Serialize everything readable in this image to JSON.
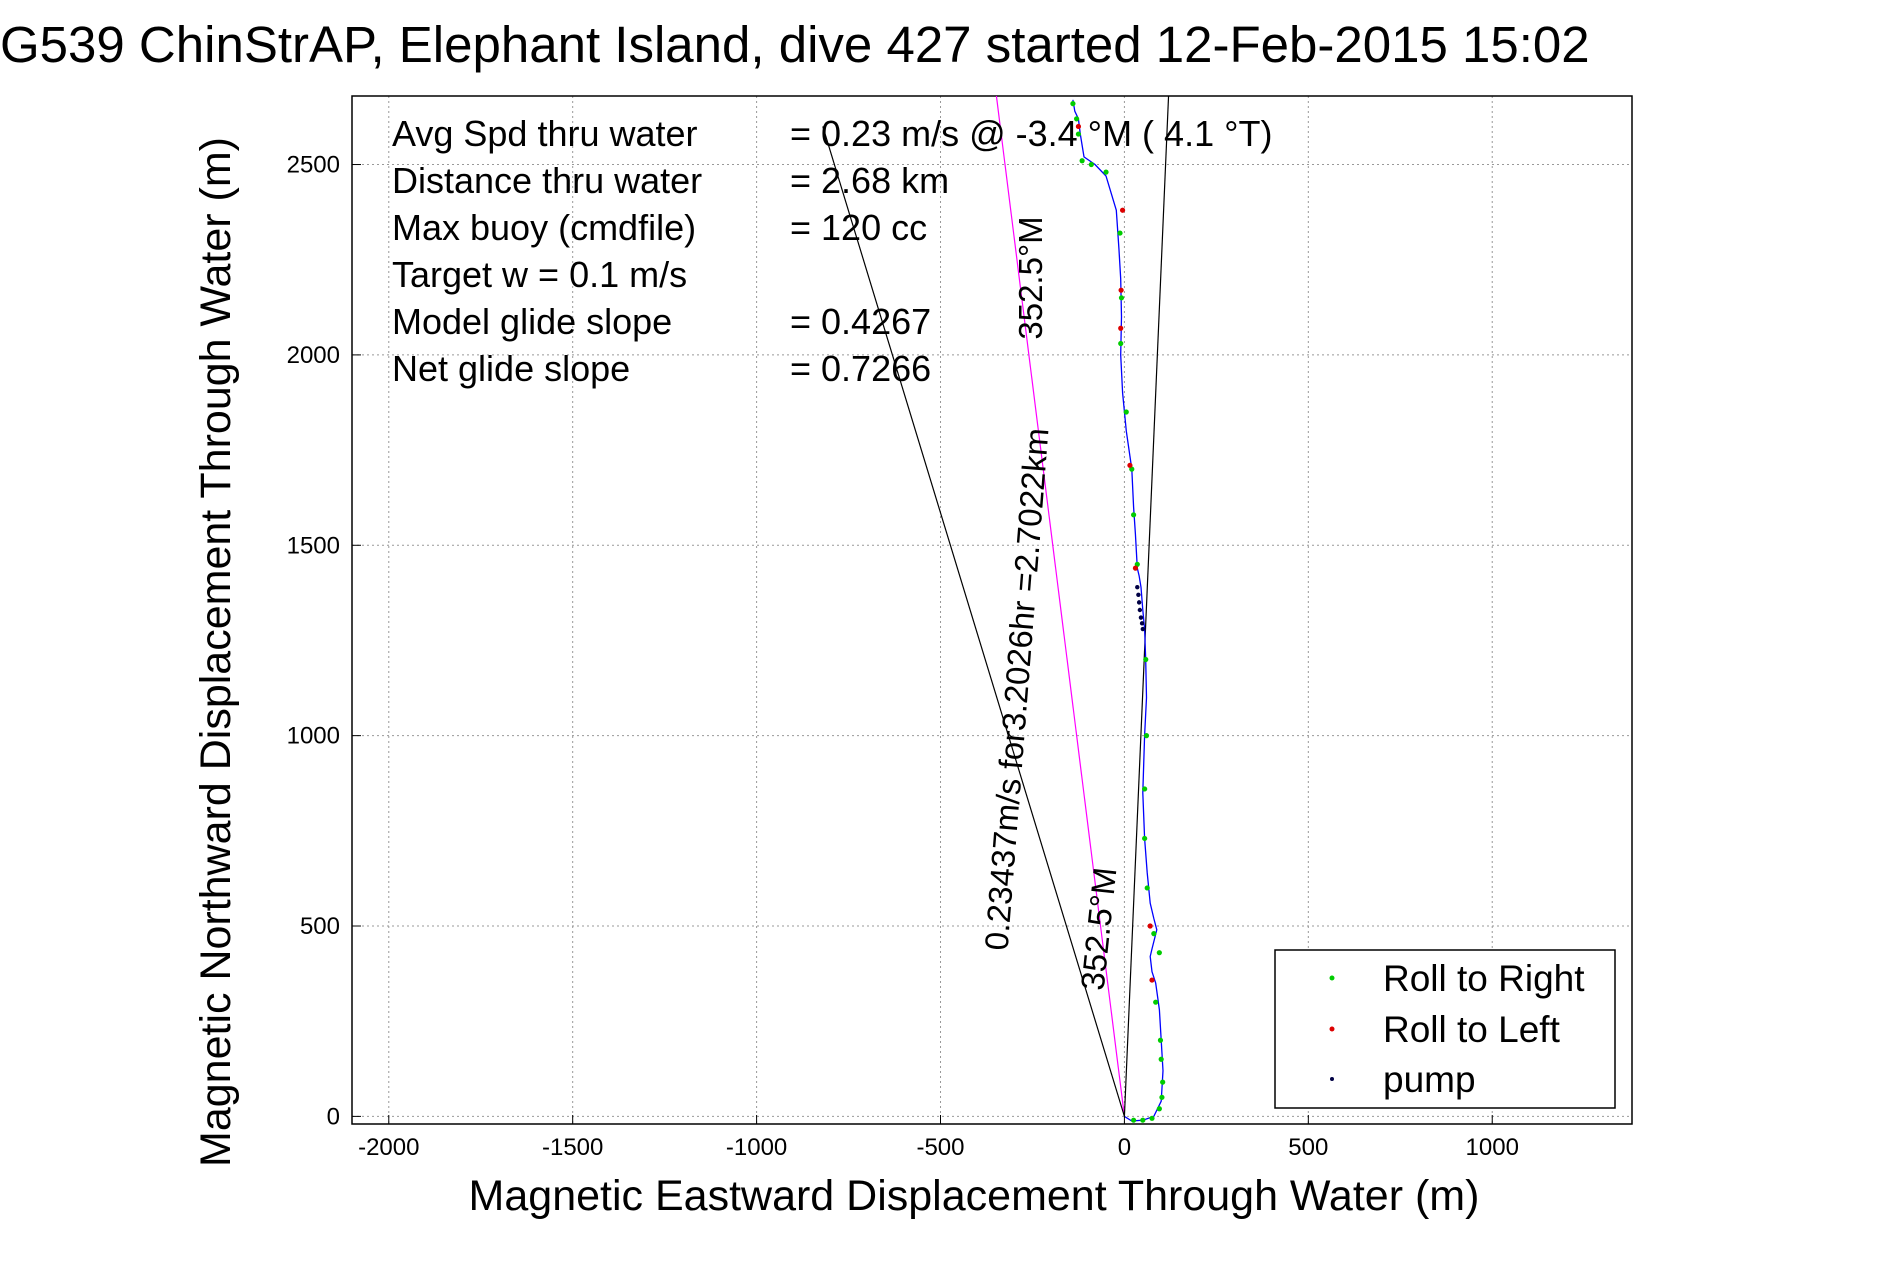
{
  "chart_data": {
    "type": "line",
    "title": "G539 ChinStrAP, Elephant Island, dive 427 started 12-Feb-2015 15:02",
    "xlabel": "Magnetic Eastward Displacement Through Water (m)",
    "ylabel": "Magnetic Northward Displacement Through Water (m)",
    "xlim": [
      -2100,
      1380
    ],
    "ylim": [
      -20,
      2680
    ],
    "xticks": [
      -2000,
      -1500,
      -1000,
      -500,
      0,
      500,
      1000
    ],
    "yticks": [
      0,
      500,
      1000,
      1500,
      2000,
      2500
    ],
    "grid": true,
    "stats": [
      {
        "label": "Avg Spd thru water",
        "value": "=  0.23 m/s @  -3.4 °M (  4.1 °T)"
      },
      {
        "label": "Distance thru water",
        "value": "=  2.68 km"
      },
      {
        "label": "Max buoy (cmdfile)",
        "value": "= 120 cc"
      },
      {
        "label": "Target w    = 0.1 m/s",
        "value": ""
      },
      {
        "label": "Model glide slope",
        "value": "= 0.4267"
      },
      {
        "label": "Net glide slope",
        "value": "= 0.7266"
      }
    ],
    "annotations": {
      "heading_top": "352.5°M",
      "speed_note": "0.23437m/s for3.2026hr =2.7022km",
      "heading_bottom": "352.5°M"
    },
    "legend": {
      "position": "bottom-right",
      "entries": [
        {
          "label": "Roll to Right",
          "color": "#00cc00"
        },
        {
          "label": "Roll to Left",
          "color": "#dd0000"
        },
        {
          "label": "pump",
          "color": "#000044"
        }
      ]
    },
    "colors": {
      "track": "#0000ff",
      "heading_line": "#ff00ff",
      "cone_line": "#000000",
      "grid": "#999999"
    },
    "reference_lines": [
      {
        "name": "heading",
        "from": [
          0,
          0
        ],
        "to": [
          -348,
          2680
        ]
      },
      {
        "name": "cone-left",
        "from": [
          0,
          0
        ],
        "to": [
          -820,
          2600
        ]
      },
      {
        "name": "cone-right",
        "from": [
          0,
          0
        ],
        "to": [
          120,
          2680
        ]
      }
    ],
    "track": {
      "x": [
        0,
        20,
        50,
        80,
        100,
        105,
        100,
        95,
        85,
        75,
        70,
        75,
        88,
        80,
        70,
        62,
        55,
        50,
        55,
        60,
        58,
        55,
        50,
        45,
        40,
        35,
        30,
        25,
        20,
        5,
        -5,
        -10,
        -8,
        -10,
        -15,
        -22,
        -50,
        -80,
        -110,
        -120,
        -125,
        -135,
        -140
      ],
      "y": [
        0,
        -12,
        -10,
        0,
        40,
        120,
        200,
        280,
        350,
        380,
        420,
        440,
        490,
        520,
        560,
        640,
        730,
        850,
        1000,
        1100,
        1200,
        1280,
        1330,
        1390,
        1420,
        1440,
        1530,
        1600,
        1700,
        1800,
        1900,
        2000,
        2100,
        2200,
        2280,
        2380,
        2470,
        2500,
        2520,
        2580,
        2620,
        2640,
        2670
      ]
    },
    "roll_right": {
      "x": [
        25,
        50,
        75,
        95,
        102,
        104,
        100,
        98,
        85,
        95,
        80,
        62,
        55,
        55,
        60,
        58,
        35,
        25,
        20,
        5,
        -10,
        -8,
        -12,
        -50,
        -90,
        -115,
        -125,
        -130,
        -140
      ],
      "y": [
        -10,
        -10,
        -5,
        20,
        50,
        90,
        150,
        200,
        300,
        430,
        480,
        600,
        730,
        860,
        1000,
        1200,
        1450,
        1580,
        1700,
        1850,
        2030,
        2150,
        2320,
        2480,
        2500,
        2510,
        2580,
        2620,
        2660
      ]
    },
    "roll_left": {
      "x": [
        75,
        70,
        30,
        15,
        -10,
        -9,
        -5,
        -125
      ],
      "y": [
        358,
        500,
        1440,
        1710,
        2070,
        2170,
        2380,
        2600
      ]
    },
    "pump": {
      "x": [
        35,
        38,
        40,
        42,
        45,
        48,
        50
      ],
      "y": [
        1390,
        1370,
        1350,
        1330,
        1310,
        1295,
        1280
      ]
    }
  }
}
